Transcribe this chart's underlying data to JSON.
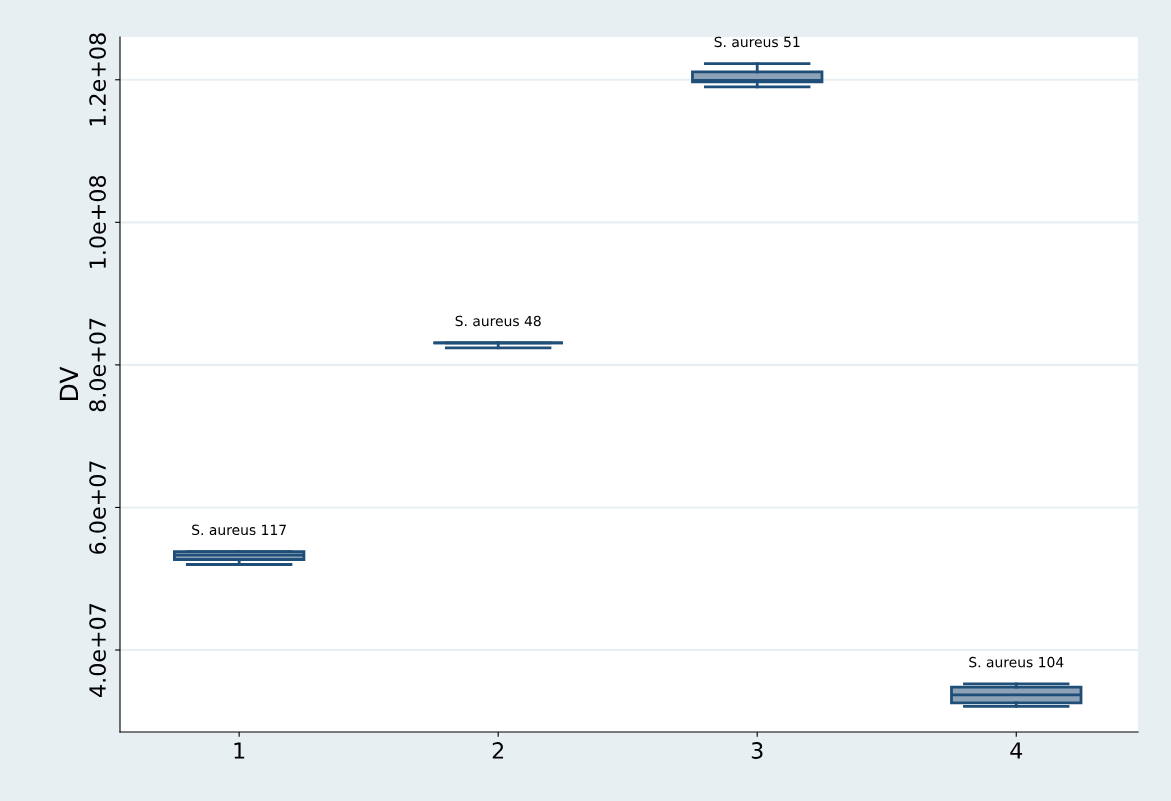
{
  "chart_data": {
    "type": "box",
    "ylabel": "DV",
    "categories": [
      "1",
      "2",
      "3",
      "4"
    ],
    "boxes": [
      {
        "low": 52000000,
        "q1": 52700000,
        "median": 53300000,
        "q3": 53800000,
        "high": 53800000
      },
      {
        "low": 82400000,
        "q1": 83100000,
        "median": 83100000,
        "q3": 83100000,
        "high": 83100000
      },
      {
        "low": 119000000,
        "q1": 119700000,
        "median": 119900000,
        "q3": 121100000,
        "high": 122250000
      },
      {
        "low": 32100000,
        "q1": 32600000,
        "median": 33700000,
        "q3": 34800000,
        "high": 35240000
      }
    ],
    "colors": [
      "#8da2b6",
      "#1f4e79",
      "#8da2b6",
      "#8da2b6"
    ],
    "ylim": [
      28500000,
      126000000
    ],
    "yticks": [
      {
        "value": 40000000,
        "label": "4.0e+07"
      },
      {
        "value": 60000000,
        "label": "6.0e+07"
      },
      {
        "value": 80000000,
        "label": "8.0e+07"
      },
      {
        "value": 100000000,
        "label": "1.0e+08"
      },
      {
        "value": 120000000,
        "label": "1.2e+08"
      }
    ],
    "grid": "y",
    "annotations": [
      {
        "text": "S. aureus 117",
        "x": "1",
        "y": 53800000
      },
      {
        "text": "S. aureus 48",
        "x": "2",
        "y": 83100000
      },
      {
        "text": "S. aureus 51",
        "x": "3",
        "y": 122250000
      },
      {
        "text": "S. aureus 104",
        "x": "4",
        "y": 35240000
      }
    ]
  }
}
